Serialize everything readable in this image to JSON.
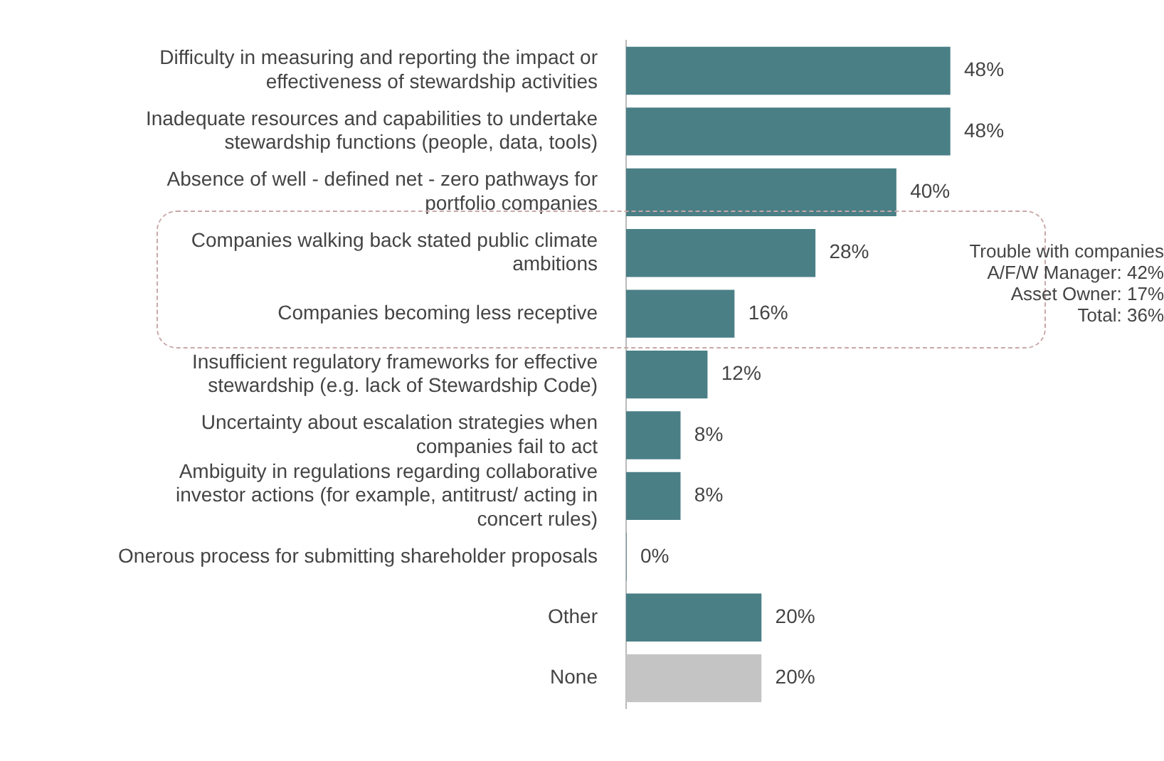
{
  "chart_data": {
    "type": "bar",
    "orientation": "horizontal",
    "categories": [
      "Difficulty in measuring and reporting the impact or effectiveness of stewardship activities",
      "Inadequate resources and capabilities to undertake stewardship functions (people, data, tools)",
      "Absence of well - defined net - zero pathways for portfolio companies",
      "Companies walking back stated public climate ambitions",
      "Companies becoming less receptive",
      "Insufficient regulatory frameworks for effective stewardship (e.g. lack of Stewardship Code)",
      "Uncertainty about escalation strategies when companies fail to act",
      "Ambiguity in regulations regarding collaborative investor actions (for example, antitrust/ acting in concert rules)",
      "Onerous process for submitting shareholder proposals",
      "Other",
      "None"
    ],
    "values": [
      48,
      48,
      40,
      28,
      16,
      12,
      8,
      8,
      0,
      20,
      20
    ],
    "colors": [
      "#4a7f86",
      "#4a7f86",
      "#4a7f86",
      "#4a7f86",
      "#4a7f86",
      "#4a7f86",
      "#4a7f86",
      "#4a7f86",
      "#4a7f86",
      "#4a7f86",
      "#c4c4c4"
    ],
    "value_labels": [
      "48%",
      "48%",
      "40%",
      "28%",
      "16%",
      "12%",
      "8%",
      "8%",
      "0%",
      "20%",
      "20%"
    ],
    "tick_labels": "y",
    "legend": false,
    "annotations": [
      "Trouble with companies\nA/F/W Manager: 42%\nAsset Owner: 17%\nTotal: 36%"
    ]
  }
}
